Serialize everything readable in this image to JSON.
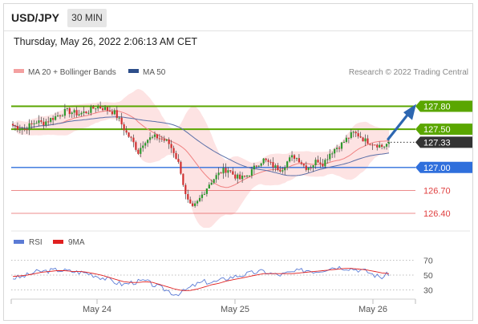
{
  "header": {
    "symbol": "USD/JPY",
    "timeframe": "30 MIN",
    "datetime": "Thursday, May 26, 2022 2:06:13 AM CET"
  },
  "legend": {
    "ma20_bb": "MA 20 + Bollinger Bands",
    "ma50": "MA 50",
    "source": "Research © 2022 Trading Central",
    "rsi": "RSI",
    "rsi_ma": "9MA"
  },
  "colors": {
    "resistance": "#5aa600",
    "current": "#333333",
    "pivot": "#2f6fdc",
    "support": "#e04040",
    "bollinger_fill": "#fde3e3",
    "ma20": "#f08080",
    "ma50": "#5a6fa8",
    "candle_up": "#2e9a2e",
    "candle_down": "#d03030",
    "arrow": "#2d67b1",
    "rsi": "#5b7bd5",
    "rsi_ma": "#e02020"
  },
  "chart_data": [
    {
      "type": "candlestick",
      "ylim": [
        126.2,
        128.0
      ],
      "x_labels": [
        "May 24",
        "May 25",
        "May 26"
      ],
      "close_path": [
        127.55,
        127.52,
        127.5,
        127.56,
        127.6,
        127.58,
        127.62,
        127.66,
        127.7,
        127.74,
        127.72,
        127.7,
        127.72,
        127.75,
        127.8,
        127.78,
        127.75,
        127.72,
        127.6,
        127.45,
        127.35,
        127.2,
        127.35,
        127.38,
        127.4,
        127.37,
        127.33,
        127.2,
        127.0,
        126.6,
        126.45,
        126.55,
        126.68,
        126.8,
        126.88,
        126.95,
        126.98,
        126.9,
        126.85,
        126.88,
        126.95,
        127.05,
        127.1,
        127.05,
        127.0,
        126.98,
        127.08,
        127.15,
        127.1,
        127.0,
        127.02,
        127.1,
        127.05,
        127.18,
        127.25,
        127.3,
        127.38,
        127.45,
        127.42,
        127.35,
        127.33,
        127.3,
        127.27,
        127.33
      ],
      "levels": [
        {
          "label": "127.80",
          "value": 127.8,
          "kind": "resistance"
        },
        {
          "label": "127.50",
          "value": 127.5,
          "kind": "resistance"
        },
        {
          "label": "127.33",
          "value": 127.33,
          "kind": "current"
        },
        {
          "label": "127.00",
          "value": 127.0,
          "kind": "pivot"
        },
        {
          "label": "126.70",
          "value": 126.7,
          "kind": "support"
        },
        {
          "label": "126.40",
          "value": 126.4,
          "kind": "support"
        }
      ]
    },
    {
      "type": "line",
      "name": "RSI",
      "ylim": [
        20,
        80
      ],
      "y_ticks": [
        "70",
        "50",
        "30"
      ],
      "rsi": [
        46,
        47,
        50,
        54,
        55,
        56,
        57,
        56,
        55,
        54,
        53,
        50,
        47,
        44,
        40,
        37,
        40,
        41,
        42,
        37,
        33,
        29,
        24,
        27,
        33,
        38,
        41,
        40,
        42,
        46,
        48,
        50,
        52,
        54,
        55,
        52,
        50,
        52,
        54,
        56,
        57,
        55,
        57,
        60,
        61,
        60,
        59,
        57,
        55,
        50,
        47,
        52
      ],
      "ma9": [
        48,
        49,
        50,
        52,
        54,
        55,
        56,
        56,
        55,
        55,
        54,
        52,
        50,
        47,
        44,
        41,
        40,
        40,
        41,
        40,
        37,
        34,
        31,
        29,
        29,
        31,
        34,
        37,
        39,
        42,
        44,
        46,
        48,
        50,
        52,
        52,
        52,
        52,
        52,
        53,
        54,
        55,
        56,
        57,
        58,
        59,
        59,
        58,
        57,
        55,
        53,
        52
      ]
    }
  ]
}
